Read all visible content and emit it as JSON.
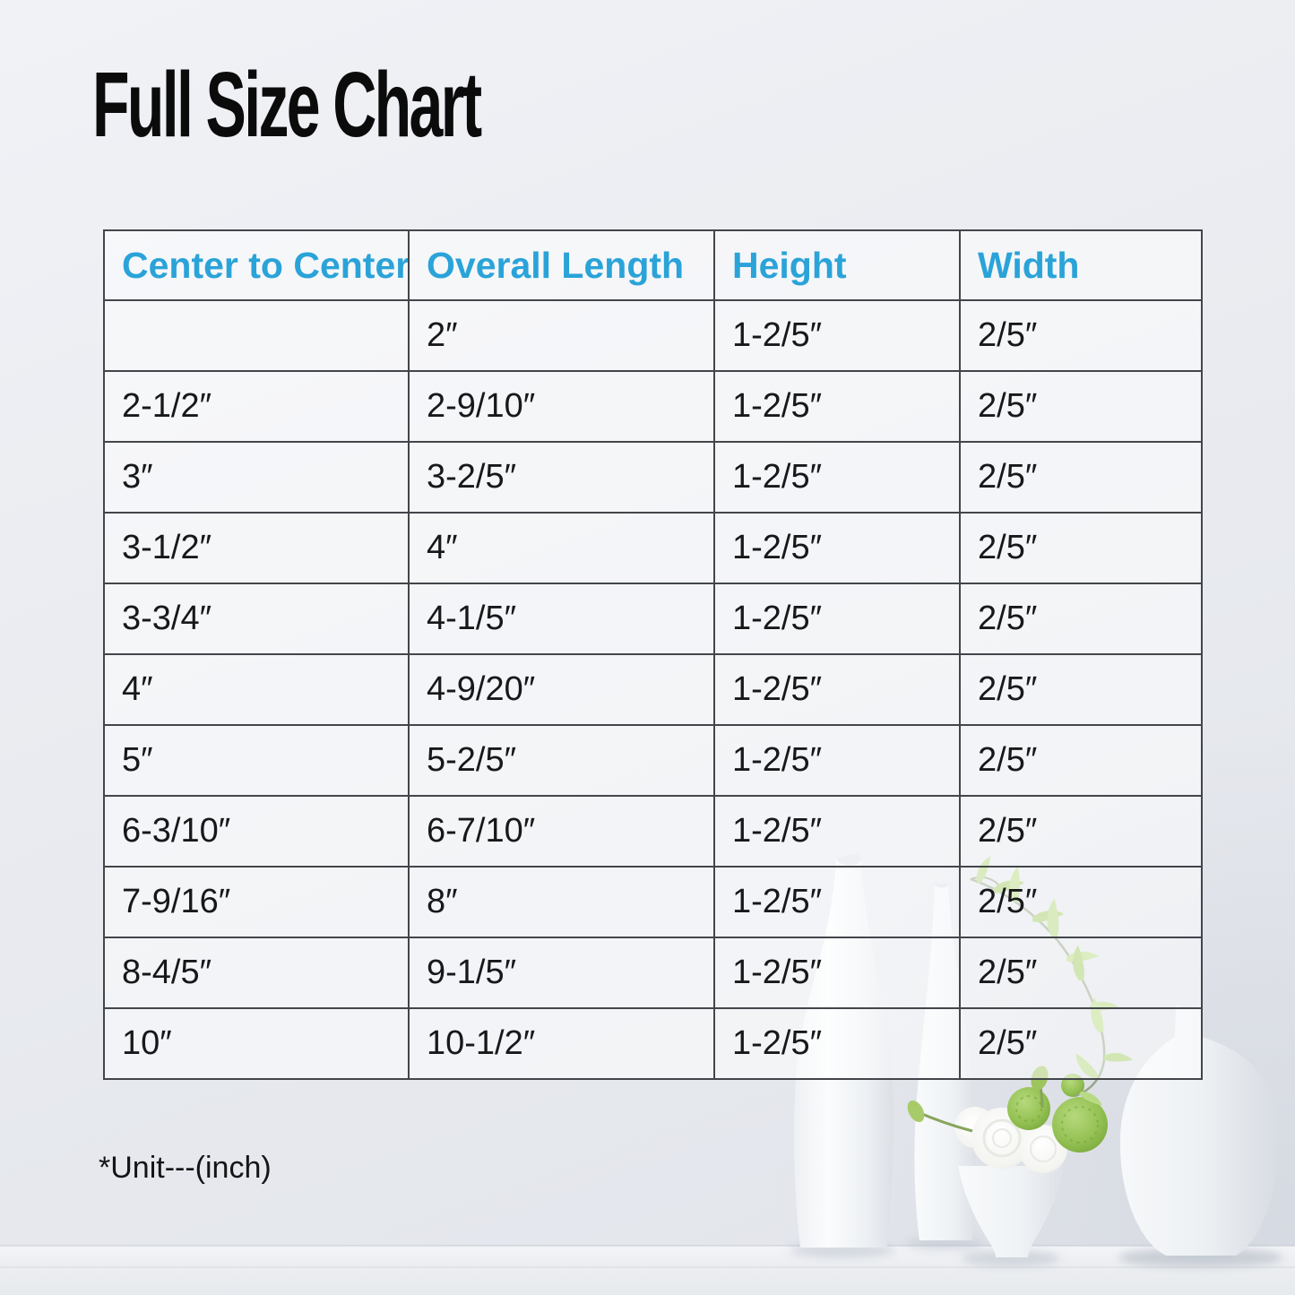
{
  "title": "Full Size Chart",
  "footnote": "*Unit---(inch)",
  "accent_color": "#2aa3d8",
  "table_border_color": "#42464b",
  "chart_data": {
    "type": "table",
    "title": "Full Size Chart",
    "columns": [
      "Center to Center",
      "Overall Length",
      "Height",
      "Width"
    ],
    "rows": [
      [
        "",
        "2″",
        "1-2/5″",
        "2/5″"
      ],
      [
        "2-1/2″",
        "2-9/10″",
        "1-2/5″",
        "2/5″"
      ],
      [
        "3″",
        "3-2/5″",
        "1-2/5″",
        "2/5″"
      ],
      [
        "3-1/2″",
        "4″",
        "1-2/5″",
        "2/5″"
      ],
      [
        "3-3/4″",
        "4-1/5″",
        "1-2/5″",
        "2/5″"
      ],
      [
        "4″",
        "4-9/20″",
        "1-2/5″",
        "2/5″"
      ],
      [
        "5″",
        "5-2/5″",
        "1-2/5″",
        "2/5″"
      ],
      [
        "6-3/10″",
        "6-7/10″",
        "1-2/5″",
        "2/5″"
      ],
      [
        "7-9/16″",
        "8″",
        "1-2/5″",
        "2/5″"
      ],
      [
        "8-4/5″",
        "9-1/5″",
        "1-2/5″",
        "2/5″"
      ],
      [
        "10″",
        "10-1/2″",
        "1-2/5″",
        "2/5″"
      ]
    ],
    "unit_note": "*Unit---(inch)"
  }
}
